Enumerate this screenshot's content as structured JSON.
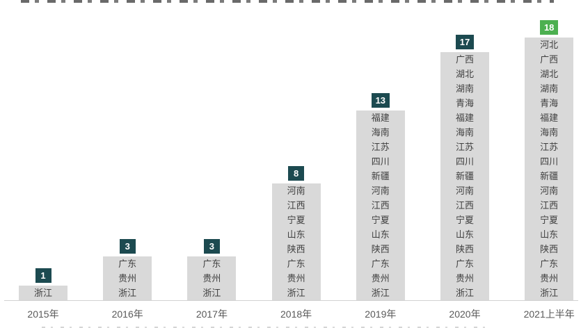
{
  "page": {
    "background": "#ffffff"
  },
  "chart_data": {
    "type": "bar",
    "title": "",
    "xlabel": "",
    "ylabel": "",
    "ylim": [
      0,
      18
    ],
    "grid": false,
    "legend": "none",
    "bar_color": "#d9d9d9",
    "axis_line_color": "#d2d2d2",
    "axis_label_color": "#595959",
    "segment_text_color": "#3f3f3f",
    "data_label_text_color": "#ffffff",
    "categories": [
      "2015年",
      "2016年",
      "2017年",
      "2018年",
      "2019年",
      "2020年",
      "2021上半年"
    ],
    "values": [
      1,
      3,
      3,
      8,
      13,
      17,
      18
    ],
    "data_label_colors": [
      "#1c4a50",
      "#1c4a50",
      "#1c4a50",
      "#1c4a50",
      "#1c4a50",
      "#1c4a50",
      "#4cb050"
    ],
    "bar_segment_labels": [
      [
        "浙江"
      ],
      [
        "广东",
        "贵州",
        "浙江"
      ],
      [
        "广东",
        "贵州",
        "浙江"
      ],
      [
        "河南",
        "江西",
        "宁夏",
        "山东",
        "陕西",
        "广东",
        "贵州",
        "浙江"
      ],
      [
        "福建",
        "海南",
        "江苏",
        "四川",
        "新疆",
        "河南",
        "江西",
        "宁夏",
        "山东",
        "陕西",
        "广东",
        "贵州",
        "浙江"
      ],
      [
        "广西",
        "湖北",
        "湖南",
        "青海",
        "福建",
        "海南",
        "江苏",
        "四川",
        "新疆",
        "河南",
        "江西",
        "宁夏",
        "山东",
        "陕西",
        "广东",
        "贵州",
        "浙江"
      ],
      [
        "河北",
        "广西",
        "湖北",
        "湖南",
        "青海",
        "福建",
        "海南",
        "江苏",
        "四川",
        "新疆",
        "河南",
        "江西",
        "宁夏",
        "山东",
        "陕西",
        "广东",
        "贵州",
        "浙江"
      ]
    ]
  }
}
